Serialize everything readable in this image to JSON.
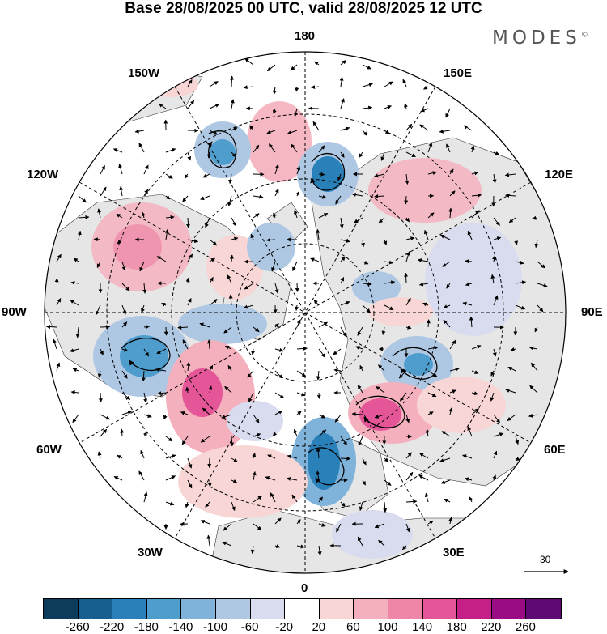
{
  "title": "Base 28/08/2025 00 UTC, valid 28/08/2025 12 UTC",
  "brand": {
    "name": "MODES",
    "mark": "©"
  },
  "longitude_labels": {
    "lon_180": "180",
    "lon_150w": "150W",
    "lon_150e": "150E",
    "lon_120w": "120W",
    "lon_120e": "120E",
    "lon_90w": "90W",
    "lon_90e": "90E",
    "lon_60w": "60W",
    "lon_60e": "60E",
    "lon_30w": "30W",
    "lon_30e": "30E",
    "lon_0": "0"
  },
  "reference_vector": {
    "label": "30"
  },
  "colorbar": {
    "colors": [
      "#0d3b5c",
      "#175f8e",
      "#2a80b8",
      "#4f9dcc",
      "#7fb3da",
      "#aec7e3",
      "#d9dbee",
      "#ffffff",
      "#f8d6d6",
      "#f4b0bd",
      "#ee86a8",
      "#e45698",
      "#c51f88",
      "#9a0c83",
      "#5e0a72"
    ],
    "ticks": [
      "-260",
      "-220",
      "-180",
      "-140",
      "-100",
      "-60",
      "-20",
      "20",
      "60",
      "100",
      "140",
      "180",
      "220",
      "260"
    ]
  },
  "colors": {
    "land": "#e6e6e6",
    "ocean": "#ffffff",
    "graticule": "#000000"
  }
}
